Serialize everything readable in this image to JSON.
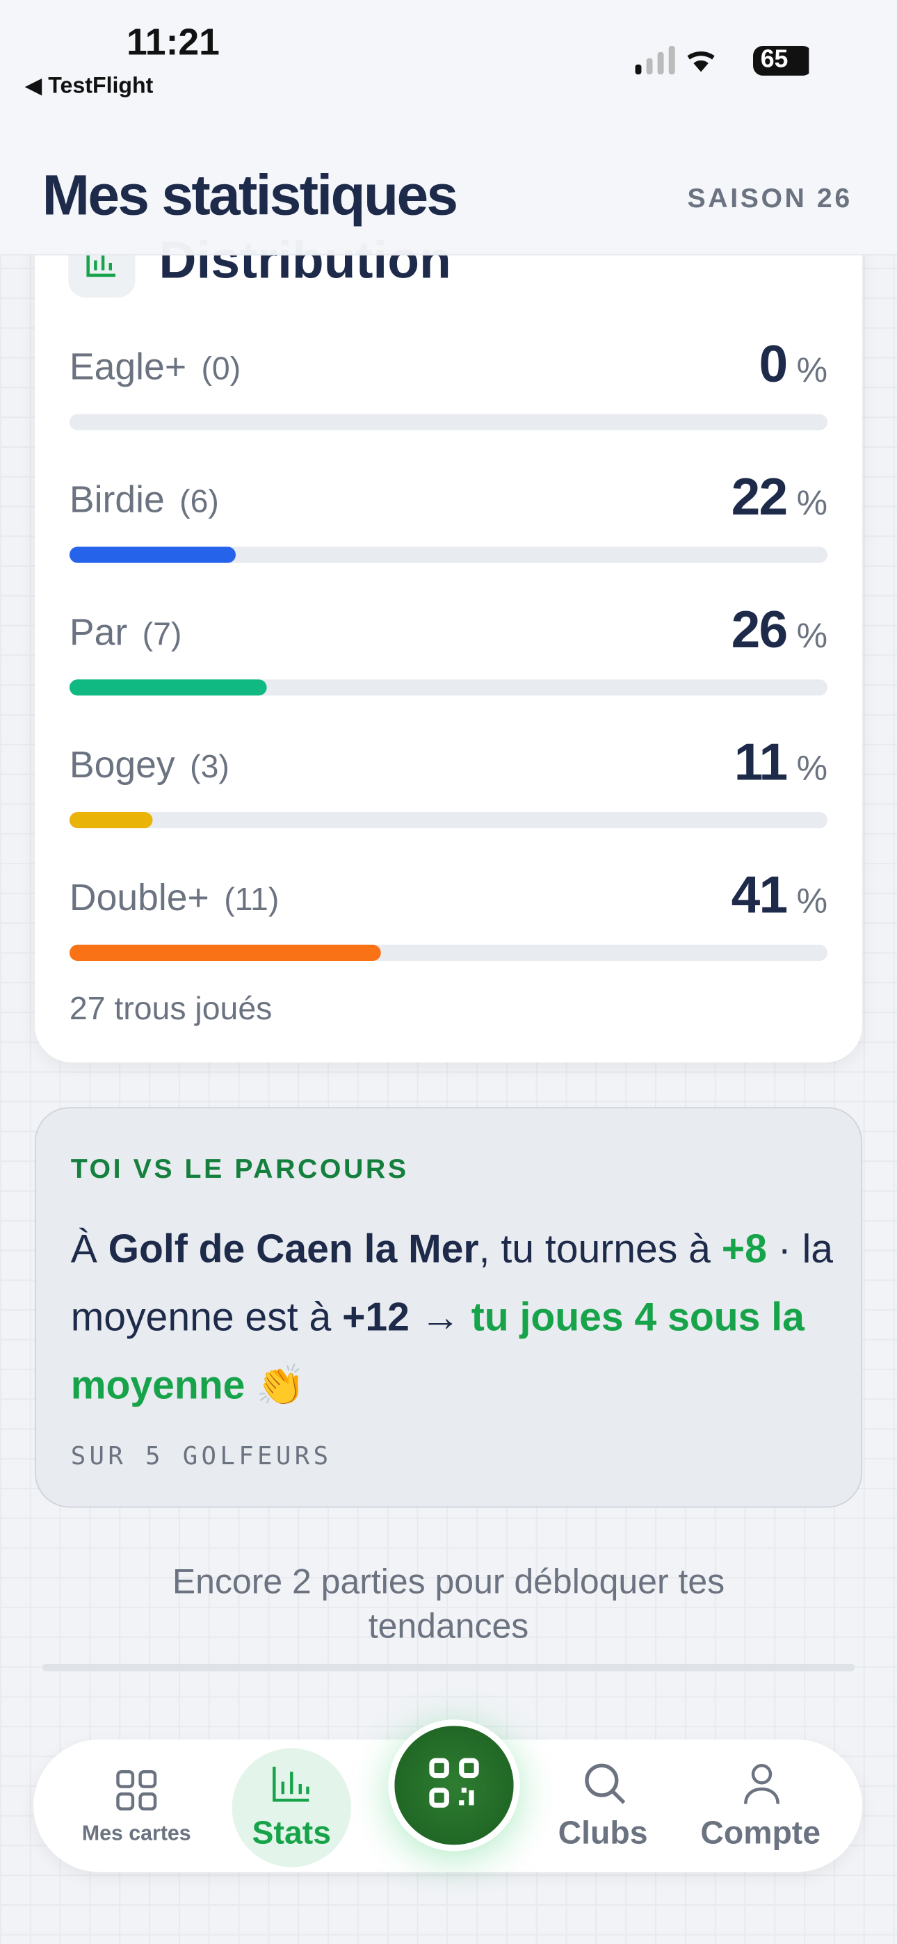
{
  "status_bar": {
    "time": "11:21",
    "back_app": "TestFlight",
    "battery": "65"
  },
  "header": {
    "title": "Mes statistiques",
    "season": "SAISON 26"
  },
  "distribution": {
    "title": "Distribution",
    "unit": "%",
    "rows": [
      {
        "label": "Eagle+",
        "count": "(0)",
        "percent": 0,
        "color": "#2563eb"
      },
      {
        "label": "Birdie",
        "count": "(6)",
        "percent": 22,
        "color": "#2563eb"
      },
      {
        "label": "Par",
        "count": "(7)",
        "percent": 26,
        "color": "#10b981"
      },
      {
        "label": "Bogey",
        "count": "(3)",
        "percent": 11,
        "color": "#eab308"
      },
      {
        "label": "Double+",
        "count": "(11)",
        "percent": 41,
        "color": "#f97316"
      }
    ],
    "footer": "27 trous joués"
  },
  "comparison": {
    "kicker": "TOI VS LE PARCOURS",
    "segments": [
      "À ",
      "Golf de Caen la Mer",
      ", tu tournes à ",
      "+8",
      " · la moyenne est à ",
      "+12",
      " → ",
      "tu joues 4 sous la moyenne",
      " 👏"
    ],
    "note": "SUR 5 GOLFEURS"
  },
  "unlock_message": "Encore 2 parties pour débloquer tes tendances",
  "nav": {
    "items": [
      "Mes cartes",
      "Stats",
      "Clubs",
      "Compte"
    ]
  }
}
